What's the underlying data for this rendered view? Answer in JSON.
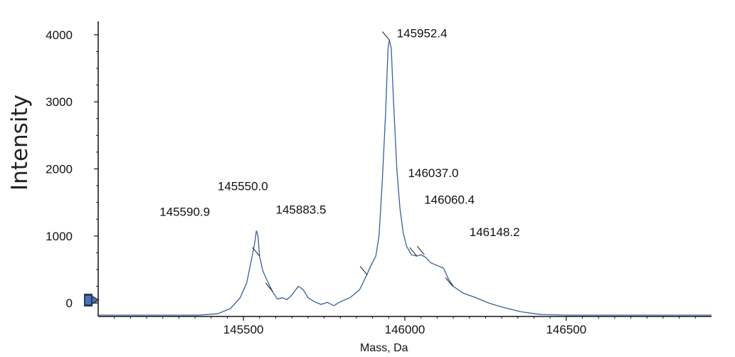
{
  "chart_data": {
    "type": "line",
    "xlabel": "Mass, Da",
    "ylabel": "Intensity",
    "xlim": [
      145050,
      146950
    ],
    "ylim": [
      -200,
      4200
    ],
    "x_ticks": [
      145500,
      146000,
      146500
    ],
    "y_ticks": [
      0,
      1000,
      2000,
      3000,
      4000
    ],
    "grid": false,
    "series": [
      {
        "color": "#3a5f9a",
        "points": [
          [
            145050,
            -180
          ],
          [
            145200,
            -180
          ],
          [
            145360,
            -180
          ],
          [
            145420,
            -160
          ],
          [
            145460,
            -80
          ],
          [
            145490,
            80
          ],
          [
            145510,
            300
          ],
          [
            145525,
            650
          ],
          [
            145535,
            900
          ],
          [
            145540,
            1080
          ],
          [
            145545,
            1000
          ],
          [
            145550,
            700
          ],
          [
            145560,
            480
          ],
          [
            145575,
            320
          ],
          [
            145590,
            170
          ],
          [
            145605,
            60
          ],
          [
            145620,
            80
          ],
          [
            145635,
            50
          ],
          [
            145650,
            120
          ],
          [
            145670,
            250
          ],
          [
            145685,
            200
          ],
          [
            145700,
            80
          ],
          [
            145720,
            20
          ],
          [
            145740,
            -20
          ],
          [
            145760,
            10
          ],
          [
            145780,
            -40
          ],
          [
            145800,
            20
          ],
          [
            145830,
            80
          ],
          [
            145860,
            200
          ],
          [
            145880,
            400
          ],
          [
            145895,
            560
          ],
          [
            145910,
            700
          ],
          [
            145920,
            1000
          ],
          [
            145930,
            1800
          ],
          [
            145940,
            2800
          ],
          [
            145948,
            3800
          ],
          [
            145952,
            3920
          ],
          [
            145958,
            3800
          ],
          [
            145965,
            3000
          ],
          [
            145975,
            2000
          ],
          [
            145985,
            1400
          ],
          [
            145995,
            1050
          ],
          [
            146005,
            850
          ],
          [
            146020,
            720
          ],
          [
            146037,
            700
          ],
          [
            146050,
            720
          ],
          [
            146065,
            680
          ],
          [
            146080,
            600
          ],
          [
            146100,
            560
          ],
          [
            146120,
            520
          ],
          [
            146135,
            360
          ],
          [
            146150,
            250
          ],
          [
            146180,
            150
          ],
          [
            146220,
            80
          ],
          [
            146260,
            0
          ],
          [
            146300,
            -60
          ],
          [
            146360,
            -130
          ],
          [
            146420,
            -170
          ],
          [
            146500,
            -180
          ],
          [
            146700,
            -180
          ],
          [
            146950,
            -180
          ]
        ]
      }
    ],
    "annotations": [
      {
        "text": "145590.9",
        "x": 145590.9,
        "y": 170,
        "label_x": 145240,
        "label_y": 1300
      },
      {
        "text": "145550.0",
        "x": 145550.0,
        "y": 700,
        "label_x": 145420,
        "label_y": 1680
      },
      {
        "text": "145883.5",
        "x": 145883.5,
        "y": 420,
        "label_x": 145600,
        "label_y": 1330
      },
      {
        "text": "145952.4",
        "x": 145952.4,
        "y": 3920,
        "label_x": 145975,
        "label_y": 3960
      },
      {
        "text": "146037.0",
        "x": 146037.0,
        "y": 700,
        "label_x": 146010,
        "label_y": 1880
      },
      {
        "text": "146060.4",
        "x": 146060.4,
        "y": 720,
        "label_x": 146060,
        "label_y": 1480
      },
      {
        "text": "146148.2",
        "x": 146148.2,
        "y": 250,
        "label_x": 146200,
        "label_y": 1000
      }
    ]
  }
}
